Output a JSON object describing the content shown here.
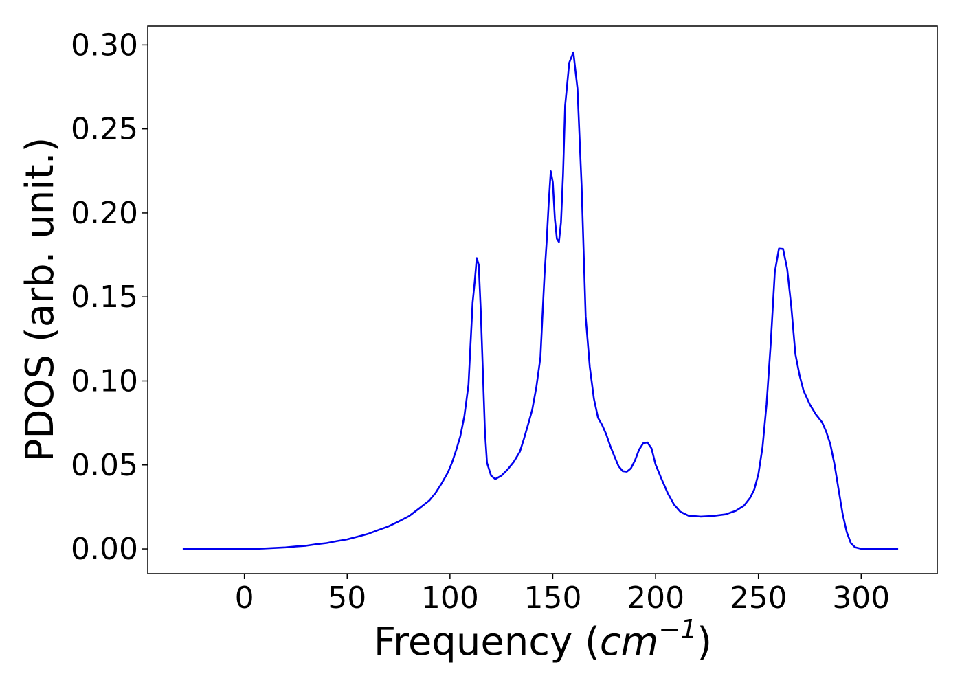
{
  "chart_data": {
    "type": "line",
    "title": "",
    "xlabel": {
      "prefix": "Frequency (",
      "math": "cm",
      "superscript": "−1",
      "suffix": ")"
    },
    "ylabel": "PDOS (arb. unit.)",
    "xlim": [
      -47,
      337
    ],
    "ylim": [
      -0.0147,
      0.3112
    ],
    "xticks": [
      0,
      50,
      100,
      150,
      200,
      250,
      300
    ],
    "xtick_labels": [
      "0",
      "50",
      "100",
      "150",
      "200",
      "250",
      "300"
    ],
    "yticks": [
      0.0,
      0.05,
      0.1,
      0.15,
      0.2,
      0.25,
      0.3
    ],
    "ytick_labels": [
      "0.00",
      "0.05",
      "0.10",
      "0.15",
      "0.20",
      "0.25",
      "0.30"
    ],
    "grid": false,
    "legend": "none",
    "series": [
      {
        "color": "#0000ee",
        "points": [
          [
            -30,
            0.0
          ],
          [
            -10,
            0.0
          ],
          [
            0,
            0.0
          ],
          [
            5,
            0.0
          ],
          [
            10,
            0.0003
          ],
          [
            15,
            0.0006
          ],
          [
            20,
            0.0009
          ],
          [
            25,
            0.0015
          ],
          [
            30,
            0.0019
          ],
          [
            35,
            0.0028
          ],
          [
            40,
            0.0035
          ],
          [
            45,
            0.0047
          ],
          [
            50,
            0.0057
          ],
          [
            55,
            0.0073
          ],
          [
            60,
            0.0089
          ],
          [
            65,
            0.0112
          ],
          [
            70,
            0.0134
          ],
          [
            75,
            0.0163
          ],
          [
            80,
            0.0195
          ],
          [
            85,
            0.0241
          ],
          [
            90,
            0.0289
          ],
          [
            93,
            0.0334
          ],
          [
            96,
            0.0391
          ],
          [
            99,
            0.0456
          ],
          [
            101,
            0.0514
          ],
          [
            103,
            0.0587
          ],
          [
            105,
            0.0669
          ],
          [
            107,
            0.0791
          ],
          [
            109,
            0.0978
          ],
          [
            110,
            0.1223
          ],
          [
            111,
            0.1467
          ],
          [
            112,
            0.1589
          ],
          [
            113,
            0.1731
          ],
          [
            114,
            0.1691
          ],
          [
            115,
            0.1414
          ],
          [
            116,
            0.1059
          ],
          [
            117,
            0.0701
          ],
          [
            118,
            0.0513
          ],
          [
            120,
            0.0436
          ],
          [
            122,
            0.0416
          ],
          [
            125,
            0.0436
          ],
          [
            128,
            0.0472
          ],
          [
            131,
            0.0518
          ],
          [
            134,
            0.0579
          ],
          [
            136,
            0.0657
          ],
          [
            138,
            0.0742
          ],
          [
            140,
            0.0828
          ],
          [
            142,
            0.0962
          ],
          [
            144,
            0.1141
          ],
          [
            145,
            0.1393
          ],
          [
            146,
            0.1638
          ],
          [
            147,
            0.1827
          ],
          [
            148,
            0.2058
          ],
          [
            149,
            0.2248
          ],
          [
            150,
            0.2183
          ],
          [
            151,
            0.1965
          ],
          [
            152,
            0.1846
          ],
          [
            153,
            0.1827
          ],
          [
            154,
            0.1944
          ],
          [
            155,
            0.2231
          ],
          [
            156,
            0.2638
          ],
          [
            158,
            0.2894
          ],
          [
            160,
            0.2956
          ],
          [
            162,
            0.274
          ],
          [
            164,
            0.2161
          ],
          [
            166,
            0.1384
          ],
          [
            168,
            0.1084
          ],
          [
            170,
            0.0894
          ],
          [
            172,
            0.0781
          ],
          [
            174,
            0.0738
          ],
          [
            176,
            0.0682
          ],
          [
            178,
            0.0612
          ],
          [
            180,
            0.0551
          ],
          [
            182,
            0.0493
          ],
          [
            184,
            0.0463
          ],
          [
            186,
            0.046
          ],
          [
            188,
            0.048
          ],
          [
            190,
            0.0527
          ],
          [
            192,
            0.0591
          ],
          [
            194,
            0.0629
          ],
          [
            196,
            0.0634
          ],
          [
            198,
            0.0599
          ],
          [
            200,
            0.0502
          ],
          [
            203,
            0.0414
          ],
          [
            206,
            0.033
          ],
          [
            209,
            0.0264
          ],
          [
            212,
            0.0222
          ],
          [
            216,
            0.0198
          ],
          [
            222,
            0.0193
          ],
          [
            228,
            0.0197
          ],
          [
            234,
            0.0206
          ],
          [
            239,
            0.0227
          ],
          [
            243,
            0.0258
          ],
          [
            246,
            0.0305
          ],
          [
            248,
            0.0354
          ],
          [
            250,
            0.0446
          ],
          [
            252,
            0.0606
          ],
          [
            254,
            0.0862
          ],
          [
            256,
            0.122
          ],
          [
            258,
            0.1649
          ],
          [
            260,
            0.1788
          ],
          [
            262,
            0.1786
          ],
          [
            264,
            0.1666
          ],
          [
            266,
            0.1441
          ],
          [
            268,
            0.116
          ],
          [
            270,
            0.1035
          ],
          [
            272,
            0.0941
          ],
          [
            275,
            0.086
          ],
          [
            278,
            0.08
          ],
          [
            281,
            0.0754
          ],
          [
            283,
            0.0698
          ],
          [
            285,
            0.0623
          ],
          [
            287,
            0.0505
          ],
          [
            289,
            0.0353
          ],
          [
            291,
            0.0206
          ],
          [
            293,
            0.01
          ],
          [
            295,
            0.0034
          ],
          [
            297,
            0.001
          ],
          [
            300,
            0.0001
          ],
          [
            305,
            0.0
          ],
          [
            310,
            0.0
          ],
          [
            318,
            0.0
          ]
        ]
      }
    ]
  }
}
